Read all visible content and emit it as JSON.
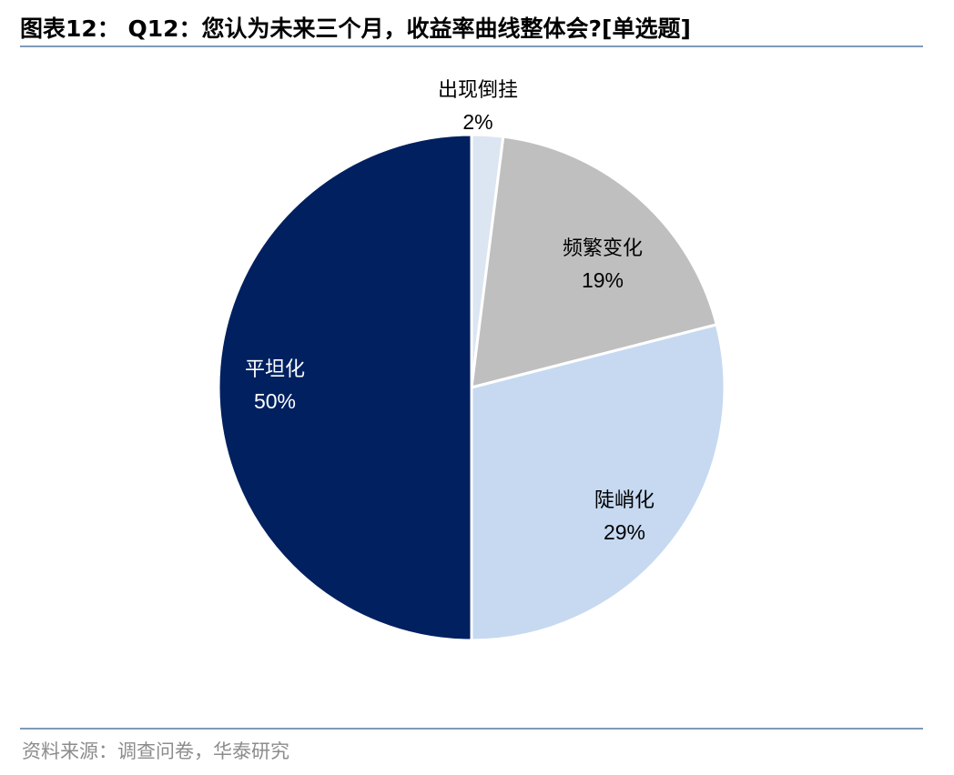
{
  "header": {
    "title": "图表12： Q12：您认为未来三个月，收益率曲线整体会?[单选题]"
  },
  "footer": {
    "source": "资料来源：调查问卷，华泰研究"
  },
  "chart_data": {
    "type": "pie",
    "title": "",
    "start_angle_deg": 0,
    "direction": "clockwise",
    "slices": [
      {
        "label": "出现倒挂",
        "value": 2,
        "value_label": "2%",
        "color": "#dce6f2",
        "text_color": "#000000"
      },
      {
        "label": "频繁变化",
        "value": 19,
        "value_label": "19%",
        "color": "#bfbfbf",
        "text_color": "#000000"
      },
      {
        "label": "陡峭化",
        "value": 29,
        "value_label": "29%",
        "color": "#c6d9f1",
        "text_color": "#000000"
      },
      {
        "label": "平坦化",
        "value": 50,
        "value_label": "50%",
        "color": "#002060",
        "text_color": "#ffffff"
      }
    ]
  }
}
